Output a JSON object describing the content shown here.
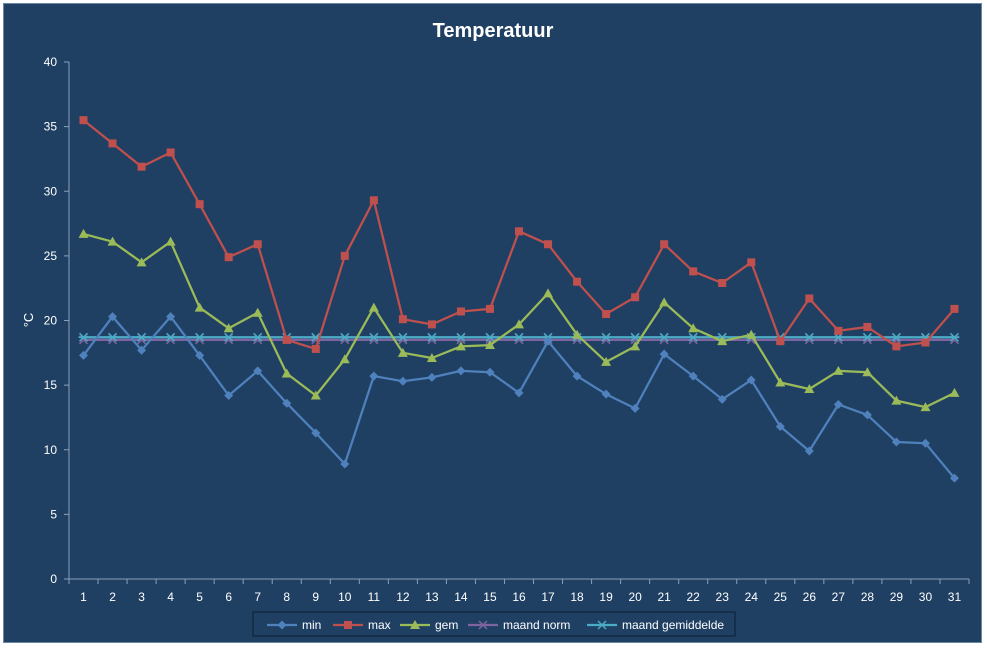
{
  "chart_data": {
    "type": "line",
    "title": "Temperatuur",
    "xlabel": "",
    "ylabel": "°C",
    "ylim": [
      0,
      40
    ],
    "yticks": [
      0,
      5,
      10,
      15,
      20,
      25,
      30,
      35,
      40
    ],
    "grid": false,
    "legend_position": "bottom",
    "x": [
      1,
      2,
      3,
      4,
      5,
      6,
      7,
      8,
      9,
      10,
      11,
      12,
      13,
      14,
      15,
      16,
      17,
      18,
      19,
      20,
      21,
      22,
      23,
      24,
      25,
      26,
      27,
      28,
      29,
      30,
      31
    ],
    "series": [
      {
        "name": "min",
        "color": "#4f81bd",
        "marker": "diamond",
        "values": [
          17.3,
          20.3,
          17.7,
          20.3,
          17.3,
          14.2,
          16.1,
          13.6,
          11.3,
          8.9,
          15.7,
          15.3,
          15.6,
          16.1,
          16.0,
          14.4,
          18.4,
          15.7,
          14.3,
          13.2,
          17.4,
          15.7,
          13.9,
          15.4,
          11.8,
          9.9,
          13.5,
          12.7,
          10.6,
          10.5,
          7.8
        ]
      },
      {
        "name": "max",
        "color": "#c0504d",
        "marker": "square",
        "values": [
          35.5,
          33.7,
          31.9,
          33.0,
          29.0,
          24.9,
          25.9,
          18.5,
          17.8,
          25.0,
          29.3,
          20.1,
          19.7,
          20.7,
          20.9,
          26.9,
          25.9,
          23.0,
          20.5,
          21.8,
          25.9,
          23.8,
          22.9,
          24.5,
          18.4,
          21.7,
          19.2,
          19.5,
          18.0,
          18.3,
          20.9
        ]
      },
      {
        "name": "gem",
        "color": "#9bbb59",
        "marker": "triangle",
        "values": [
          26.7,
          26.1,
          24.5,
          26.1,
          21.0,
          19.4,
          20.6,
          15.9,
          14.2,
          17.0,
          21.0,
          17.5,
          17.1,
          18.0,
          18.1,
          19.7,
          22.1,
          18.9,
          16.8,
          18.0,
          21.4,
          19.4,
          18.4,
          18.9,
          15.2,
          14.7,
          16.1,
          16.0,
          13.8,
          13.3,
          14.4
        ]
      },
      {
        "name": "maand norm",
        "color": "#8064a2",
        "marker": "x",
        "values": [
          18.5,
          18.5,
          18.5,
          18.5,
          18.5,
          18.5,
          18.5,
          18.5,
          18.5,
          18.5,
          18.5,
          18.5,
          18.5,
          18.5,
          18.5,
          18.5,
          18.5,
          18.5,
          18.5,
          18.5,
          18.5,
          18.5,
          18.5,
          18.5,
          18.5,
          18.5,
          18.5,
          18.5,
          18.5,
          18.5,
          18.5
        ]
      },
      {
        "name": "maand gemiddelde",
        "color": "#4bacc6",
        "marker": "star",
        "values": [
          18.7,
          18.7,
          18.7,
          18.7,
          18.7,
          18.7,
          18.7,
          18.7,
          18.7,
          18.7,
          18.7,
          18.7,
          18.7,
          18.7,
          18.7,
          18.7,
          18.7,
          18.7,
          18.7,
          18.7,
          18.7,
          18.7,
          18.7,
          18.7,
          18.7,
          18.7,
          18.7,
          18.7,
          18.7,
          18.7,
          18.7
        ]
      }
    ]
  }
}
